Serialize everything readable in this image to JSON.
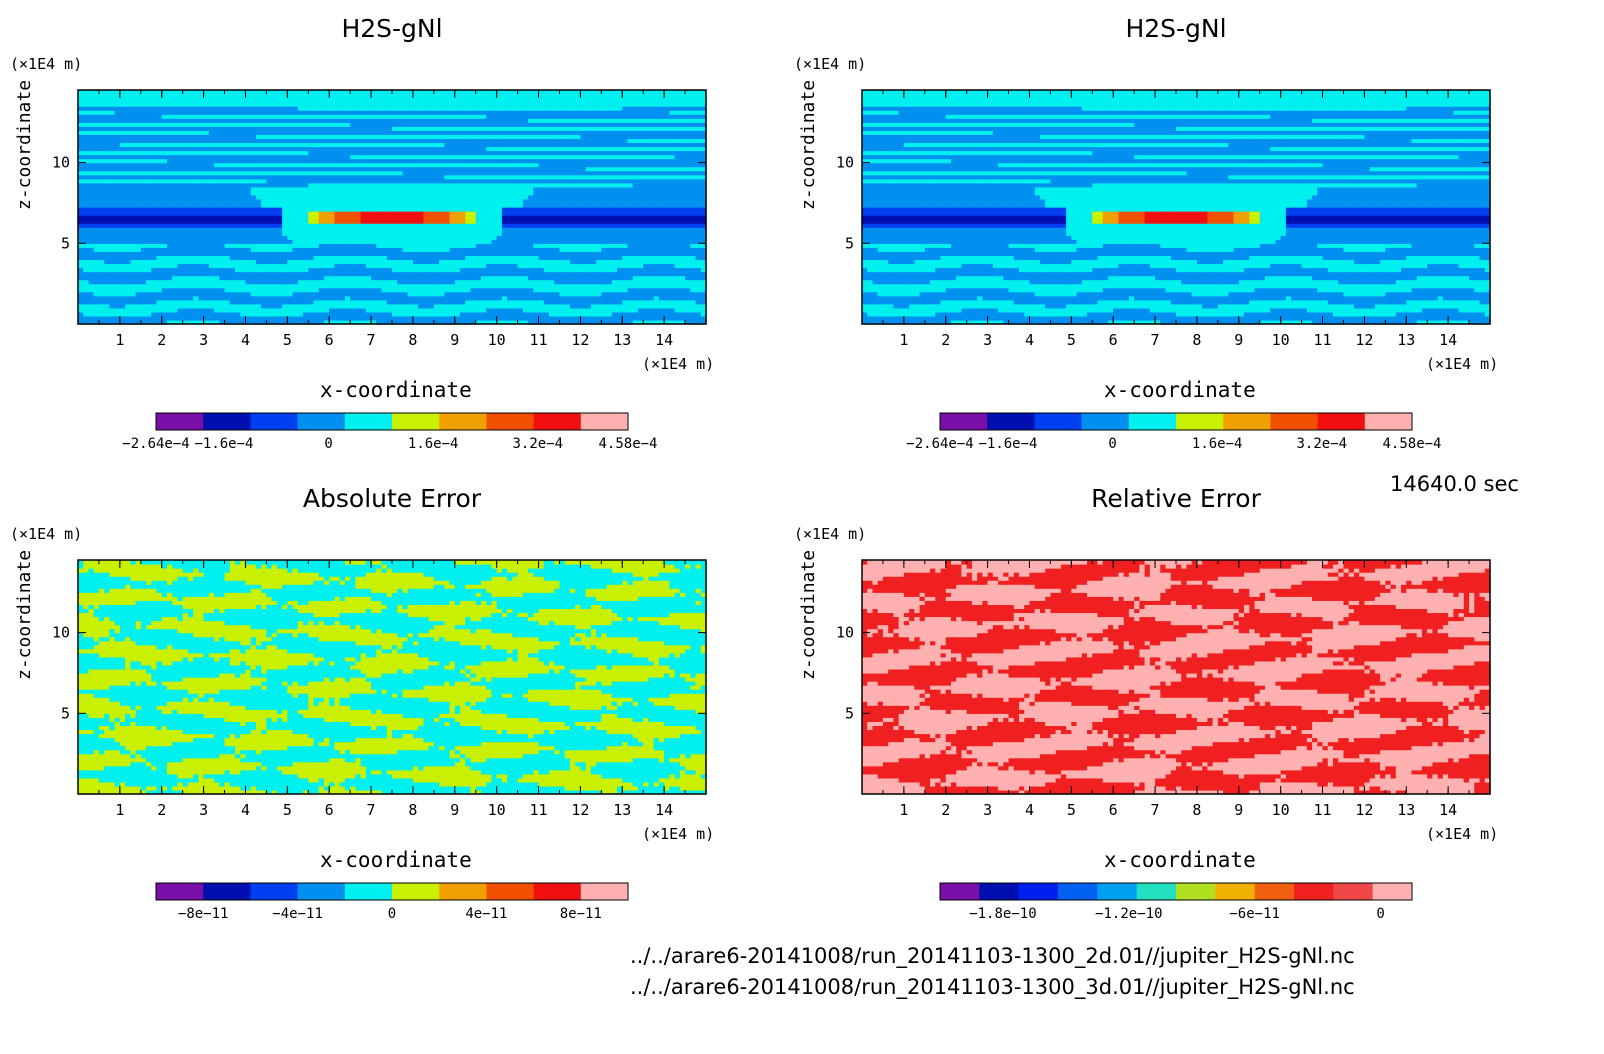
{
  "chart_data": [
    {
      "type": "heatmap",
      "title": "H2S-gNl",
      "xlabel": "x-coordinate",
      "ylabel": "z-coordinate",
      "x_unit": "(×1E4 m)",
      "z_unit": "(×1E4 m)",
      "xlim": [
        0,
        15
      ],
      "zlim": [
        0,
        14.5
      ],
      "x_ticks": [
        1,
        2,
        3,
        4,
        5,
        6,
        7,
        8,
        9,
        10,
        11,
        12,
        13,
        14
      ],
      "z_ticks": [
        5,
        10
      ],
      "colorbar": {
        "colors": [
          "#7a0fa8",
          "#0010b0",
          "#0040f0",
          "#0090f0",
          "#00f0f0",
          "#c8f000",
          "#f0a000",
          "#f05000",
          "#f01010",
          "#ffb0b0"
        ],
        "tick_labels": [
          "−2.64e−4",
          "−1.6e−4",
          "0",
          "1.6e−4",
          "3.2e−4",
          "4.58e−4"
        ],
        "tick_values": [
          -0.000264,
          -0.00016,
          0,
          0.00016,
          0.00032,
          0.000458
        ],
        "min": -0.000264,
        "max": 0.000458
      }
    },
    {
      "type": "heatmap",
      "title": "H2S-gNl",
      "xlabel": "x-coordinate",
      "ylabel": "z-coordinate",
      "x_unit": "(×1E4 m)",
      "z_unit": "(×1E4 m)",
      "xlim": [
        0,
        15
      ],
      "zlim": [
        0,
        14.5
      ],
      "x_ticks": [
        1,
        2,
        3,
        4,
        5,
        6,
        7,
        8,
        9,
        10,
        11,
        12,
        13,
        14
      ],
      "z_ticks": [
        5,
        10
      ],
      "colorbar": {
        "colors": [
          "#7a0fa8",
          "#0010b0",
          "#0040f0",
          "#0090f0",
          "#00f0f0",
          "#c8f000",
          "#f0a000",
          "#f05000",
          "#f01010",
          "#ffb0b0"
        ],
        "tick_labels": [
          "−2.64e−4",
          "−1.6e−4",
          "0",
          "1.6e−4",
          "3.2e−4",
          "4.58e−4"
        ],
        "tick_values": [
          -0.000264,
          -0.00016,
          0,
          0.00016,
          0.00032,
          0.000458
        ],
        "min": -0.000264,
        "max": 0.000458
      }
    },
    {
      "type": "heatmap",
      "title": "Absolute Error",
      "xlabel": "x-coordinate",
      "ylabel": "z-coordinate",
      "x_unit": "(×1E4 m)",
      "z_unit": "(×1E4 m)",
      "xlim": [
        0,
        15
      ],
      "zlim": [
        0,
        14.5
      ],
      "x_ticks": [
        1,
        2,
        3,
        4,
        5,
        6,
        7,
        8,
        9,
        10,
        11,
        12,
        13,
        14
      ],
      "z_ticks": [
        5,
        10
      ],
      "colorbar": {
        "colors": [
          "#7a0fa8",
          "#0010b0",
          "#0040f0",
          "#0090f0",
          "#00f0f0",
          "#c8f000",
          "#f0a000",
          "#f05000",
          "#f01010",
          "#ffb0b0"
        ],
        "tick_labels": [
          "−8e−11",
          "−4e−11",
          "0",
          "4e−11",
          "8e−11"
        ],
        "tick_values": [
          -8e-11,
          -4e-11,
          0,
          4e-11,
          8e-11
        ],
        "min": -1e-10,
        "max": 1e-10
      }
    },
    {
      "type": "heatmap",
      "title": "Relative Error",
      "xlabel": "x-coordinate",
      "ylabel": "z-coordinate",
      "x_unit": "(×1E4 m)",
      "z_unit": "(×1E4 m)",
      "xlim": [
        0,
        15
      ],
      "zlim": [
        0,
        14.5
      ],
      "x_ticks": [
        1,
        2,
        3,
        4,
        5,
        6,
        7,
        8,
        9,
        10,
        11,
        12,
        13,
        14
      ],
      "z_ticks": [
        5,
        10
      ],
      "colorbar": {
        "colors": [
          "#7a0fa8",
          "#0010b0",
          "#0020f0",
          "#0060f0",
          "#00a0f0",
          "#20e0c0",
          "#b0e020",
          "#f0b000",
          "#f06010",
          "#f02020",
          "#f04848",
          "#ffb0b0"
        ],
        "tick_labels": [
          "−1.8e−10",
          "−1.2e−10",
          "−6e−11",
          "0"
        ],
        "tick_values": [
          -1.8e-10,
          -1.2e-10,
          -6e-11,
          0
        ],
        "min": -2.1e-10,
        "max": 1.5e-11
      }
    }
  ],
  "time_label": "14640.0 sec",
  "file_paths": [
    "../../arare6-20141008/run_20141103-1300_2d.01//jupiter_H2S-gNl.nc",
    "../../arare6-20141008/run_20141103-1300_3d.01//jupiter_H2S-gNl.nc"
  ]
}
